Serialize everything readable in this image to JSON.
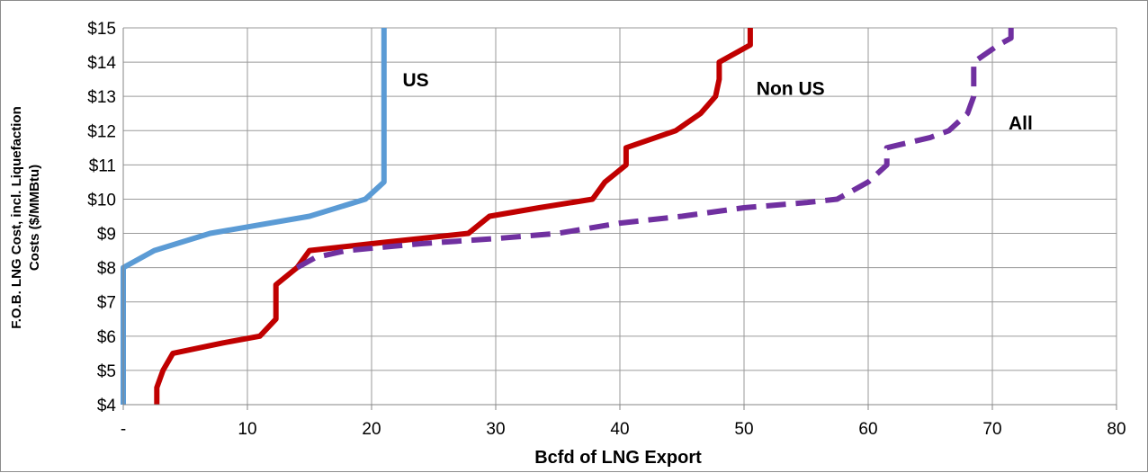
{
  "chart_data": {
    "type": "line",
    "title": "",
    "xlabel": "Bcfd of LNG Export",
    "ylabel_line1": "F.O.B. LNG Cost, incl. Liquefaction",
    "ylabel_line2": "Costs ($/MMBtu)",
    "xlim": [
      0,
      80
    ],
    "ylim": [
      4,
      15
    ],
    "x_ticks": [
      0,
      10,
      20,
      30,
      40,
      50,
      60,
      70,
      80
    ],
    "x_tick_labels": [
      "-",
      "10",
      "20",
      "30",
      "40",
      "50",
      "60",
      "70",
      "80"
    ],
    "y_ticks": [
      4,
      5,
      6,
      7,
      8,
      9,
      10,
      11,
      12,
      13,
      14,
      15
    ],
    "y_tick_labels": [
      "$4",
      "$5",
      "$6",
      "$7",
      "$8",
      "$9",
      "$10",
      "$11",
      "$12",
      "$13",
      "$14",
      "$15"
    ],
    "grid": true,
    "legend": "none",
    "series": [
      {
        "name": "US",
        "color": "#5b9bd5",
        "dash": "solid",
        "points": [
          [
            0,
            4
          ],
          [
            0,
            8
          ],
          [
            2.5,
            8.5
          ],
          [
            7,
            9
          ],
          [
            15,
            9.5
          ],
          [
            19.5,
            10
          ],
          [
            21,
            10.5
          ],
          [
            21,
            15
          ]
        ]
      },
      {
        "name": "Non US",
        "color": "#c00000",
        "dash": "solid",
        "points": [
          [
            2.7,
            4
          ],
          [
            2.7,
            4.5
          ],
          [
            3.2,
            5
          ],
          [
            4,
            5.5
          ],
          [
            8,
            5.8
          ],
          [
            11,
            6
          ],
          [
            12.3,
            6.5
          ],
          [
            12.3,
            7.5
          ],
          [
            14,
            8
          ],
          [
            15,
            8.5
          ],
          [
            20,
            8.7
          ],
          [
            27.8,
            9
          ],
          [
            29.5,
            9.5
          ],
          [
            33.5,
            9.75
          ],
          [
            37.8,
            10
          ],
          [
            38.8,
            10.5
          ],
          [
            40.5,
            11
          ],
          [
            40.5,
            11.5
          ],
          [
            44.5,
            12
          ],
          [
            46.5,
            12.5
          ],
          [
            47.7,
            13
          ],
          [
            48,
            13.5
          ],
          [
            48,
            14
          ],
          [
            50.5,
            14.5
          ],
          [
            50.5,
            15
          ]
        ]
      },
      {
        "name": "All",
        "color": "#7030a0",
        "dash": "dashed",
        "points": [
          [
            14,
            8
          ],
          [
            15.5,
            8.3
          ],
          [
            18,
            8.5
          ],
          [
            24,
            8.7
          ],
          [
            30,
            8.85
          ],
          [
            35,
            9
          ],
          [
            40,
            9.3
          ],
          [
            45,
            9.5
          ],
          [
            50,
            9.75
          ],
          [
            55,
            9.9
          ],
          [
            57.5,
            10
          ],
          [
            60,
            10.5
          ],
          [
            61.5,
            11
          ],
          [
            61.5,
            11.5
          ],
          [
            65,
            11.8
          ],
          [
            66.5,
            12
          ],
          [
            68,
            12.5
          ],
          [
            68.5,
            13
          ],
          [
            68.5,
            14
          ],
          [
            70.5,
            14.5
          ],
          [
            71.5,
            14.7
          ],
          [
            71.5,
            15
          ]
        ]
      }
    ],
    "annotations": [
      {
        "text": "US",
        "x": 22.5,
        "y": 13.5
      },
      {
        "text": "Non US",
        "x": 51,
        "y": 13.25
      },
      {
        "text": "All",
        "x": 71.3,
        "y": 12.25
      }
    ]
  }
}
